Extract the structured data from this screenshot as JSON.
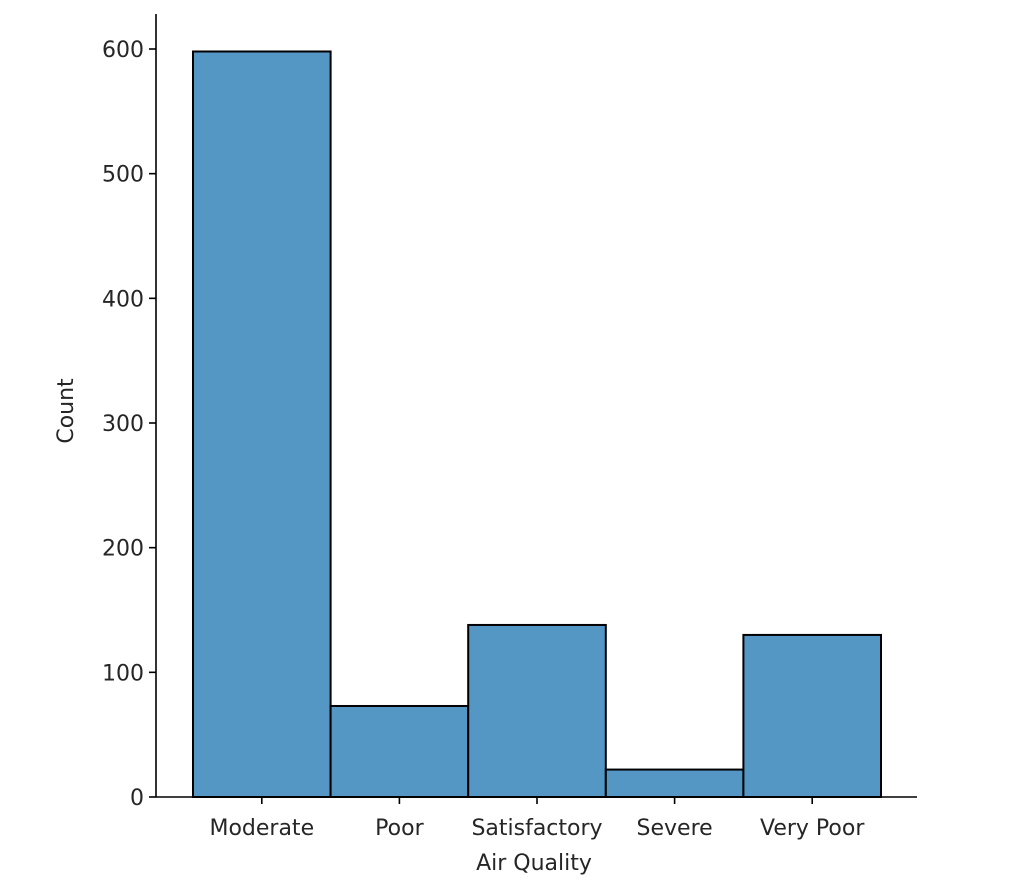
{
  "chart_data": {
    "type": "bar",
    "categories": [
      "Moderate",
      "Poor",
      "Satisfactory",
      "Severe",
      "Very Poor"
    ],
    "values": [
      598,
      73,
      138,
      22,
      130
    ],
    "xlabel": "Air Quality",
    "ylabel": "Count",
    "ylim": [
      0,
      628
    ],
    "yticks": [
      0,
      100,
      200,
      300,
      400,
      500,
      600
    ],
    "grid": false,
    "bar_color": "#5497c5",
    "bar_edge_color": "#000000"
  }
}
